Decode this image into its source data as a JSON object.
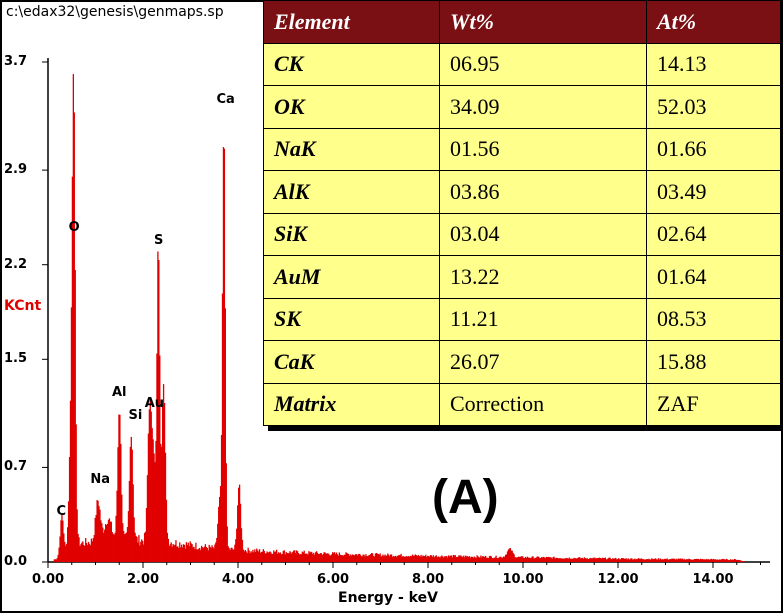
{
  "window": {
    "path": "c:\\edax32\\genesis\\genmaps.sp"
  },
  "panel_label": "(A)",
  "colors": {
    "spectrum": "#e00000",
    "header_bg": "#7a0f14",
    "cell_bg": "#ffff8c"
  },
  "table": {
    "headers": [
      "Element",
      "Wt%",
      "At%"
    ],
    "rows": [
      [
        "CK",
        "06.95",
        "14.13"
      ],
      [
        "OK",
        "34.09",
        "52.03"
      ],
      [
        "NaK",
        "01.56",
        "01.66"
      ],
      [
        "AlK",
        "03.86",
        "03.49"
      ],
      [
        "SiK",
        "03.04",
        "02.64"
      ],
      [
        "AuM",
        "13.22",
        "01.64"
      ],
      [
        "SK",
        "11.21",
        "08.53"
      ],
      [
        "CaK",
        "26.07",
        "15.88"
      ],
      [
        "Matrix",
        "Correction",
        "ZAF"
      ]
    ]
  },
  "chart_data": {
    "type": "bar",
    "xlabel": "Energy - keV",
    "ylabel": "KCnt",
    "xlim": [
      0,
      15.2
    ],
    "ylim": [
      0,
      3.7
    ],
    "xticks": [
      "0.00",
      "2.00",
      "4.00",
      "6.00",
      "8.00",
      "10.00",
      "12.00",
      "14.00"
    ],
    "yticks": [
      "0.0",
      "0.7",
      "1.5",
      "2.2",
      "2.9",
      "3.7"
    ],
    "peak_labels": [
      {
        "text": "C",
        "x": 0.28,
        "y": 0.28
      },
      {
        "text": "O",
        "x": 0.55,
        "y": 2.38
      },
      {
        "text": "Na",
        "x": 1.1,
        "y": 0.52
      },
      {
        "text": "Al",
        "x": 1.5,
        "y": 1.16
      },
      {
        "text": "Si",
        "x": 1.84,
        "y": 0.99
      },
      {
        "text": "Au",
        "x": 2.24,
        "y": 1.08
      },
      {
        "text": "S",
        "x": 2.33,
        "y": 2.29
      },
      {
        "text": "Ca",
        "x": 3.74,
        "y": 3.33
      }
    ],
    "peaks": [
      {
        "x": 0.28,
        "y": 0.3,
        "w": 0.05
      },
      {
        "x": 0.53,
        "y": 2.38,
        "w": 0.04
      },
      {
        "x": 0.5,
        "y": 1.4,
        "w": 0.07
      },
      {
        "x": 1.04,
        "y": 0.3,
        "w": 0.07
      },
      {
        "x": 1.25,
        "y": 0.16,
        "w": 0.1
      },
      {
        "x": 1.49,
        "y": 0.98,
        "w": 0.05
      },
      {
        "x": 1.74,
        "y": 0.8,
        "w": 0.05
      },
      {
        "x": 2.12,
        "y": 0.88,
        "w": 0.05
      },
      {
        "x": 2.2,
        "y": 0.72,
        "w": 0.06
      },
      {
        "x": 2.31,
        "y": 2.2,
        "w": 0.04
      },
      {
        "x": 2.42,
        "y": 1.2,
        "w": 0.05
      },
      {
        "x": 3.69,
        "y": 3.13,
        "w": 0.04
      },
      {
        "x": 3.6,
        "y": 0.35,
        "w": 0.05
      },
      {
        "x": 4.01,
        "y": 0.48,
        "w": 0.05
      },
      {
        "x": 9.71,
        "y": 0.06,
        "w": 0.08
      }
    ],
    "background": [
      {
        "x": 0.15,
        "y": 0.02
      },
      {
        "x": 0.7,
        "y": 0.14
      },
      {
        "x": 1.5,
        "y": 0.17
      },
      {
        "x": 2.5,
        "y": 0.15
      },
      {
        "x": 3.5,
        "y": 0.1
      },
      {
        "x": 4.5,
        "y": 0.08
      },
      {
        "x": 6.0,
        "y": 0.06
      },
      {
        "x": 8.0,
        "y": 0.045
      },
      {
        "x": 10.0,
        "y": 0.035
      },
      {
        "x": 12.0,
        "y": 0.025
      },
      {
        "x": 14.5,
        "y": 0.018
      },
      {
        "x": 14.7,
        "y": 0.0
      }
    ]
  }
}
